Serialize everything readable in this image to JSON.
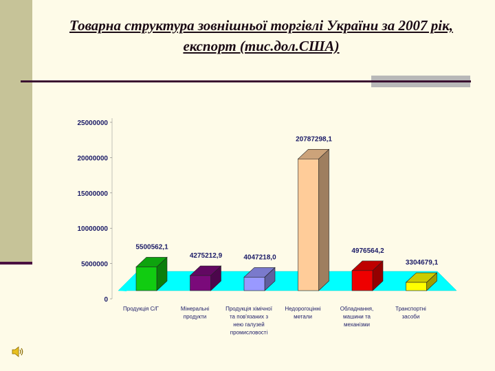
{
  "slide": {
    "title_line1": "Товарна структура зовнішньої торгівлі України за 2007 рік,",
    "title_line2": "експорт (тис.дол.США)"
  },
  "chart_data": {
    "type": "bar",
    "categories": [
      "Продукція С/Г",
      "Мінеральні продукти",
      "Продукція хімічної та пов'язаних з нею галузей промисловості",
      "Недорогоцінні метали",
      "Обладнання, машини та механізми",
      "Транспортні засоби"
    ],
    "category_lines": [
      [
        "Продукція С/Г"
      ],
      [
        "Мінеральні",
        "продукти"
      ],
      [
        "Продукція хімічної",
        "та пов'язаних з",
        "нею галузей",
        "промисловості"
      ],
      [
        "Недорогоцінні",
        "метали"
      ],
      [
        "Обладнання,",
        "машини та",
        "механізми"
      ],
      [
        "Транспортні",
        "засоби"
      ]
    ],
    "values": [
      5500562.1,
      4275212.9,
      4047218.0,
      20787298.1,
      4976564.2,
      3304679.1
    ],
    "value_labels": [
      "5500562,1",
      "4275212,9",
      "4047218,0",
      "20787298,1",
      "4976564,2",
      "3304679,1"
    ],
    "colors": [
      "#11CC11",
      "#7A0A7A",
      "#9999FF",
      "#FFCC99",
      "#EE0000",
      "#FFFF00"
    ],
    "ylim": [
      0,
      25000000
    ],
    "yticks": [
      "0",
      "5000000",
      "10000000",
      "15000000",
      "20000000",
      "25000000"
    ],
    "floor_color": "#00FFFF",
    "grid": false,
    "xlabel": "",
    "ylabel": ""
  }
}
